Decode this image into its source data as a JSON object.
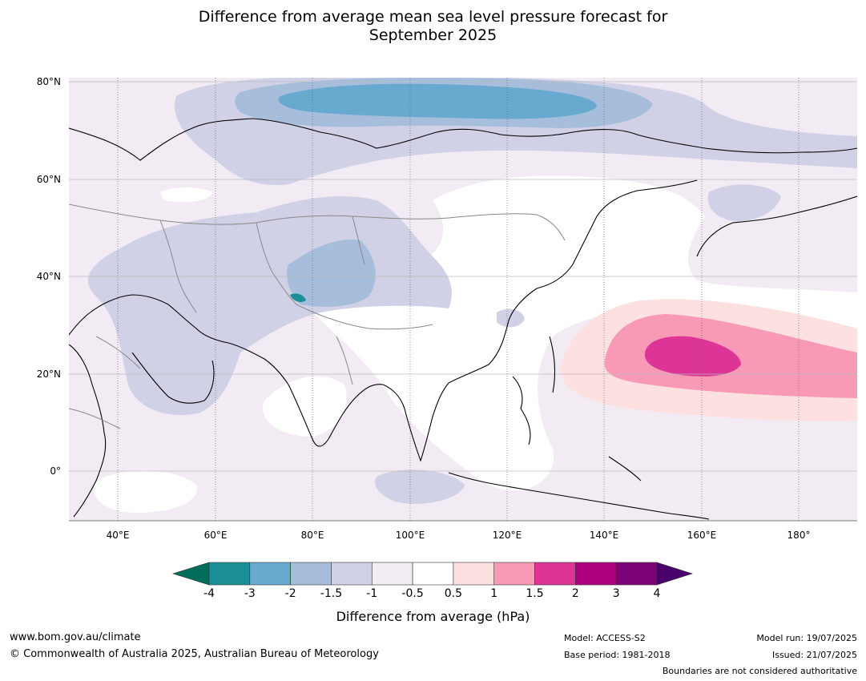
{
  "title_line1": "Difference from average mean sea level pressure forecast for",
  "title_line2": "September 2025",
  "lat_labels": [
    "80°N",
    "60°N",
    "40°N",
    "20°N",
    "0°"
  ],
  "lon_labels": [
    "40°E",
    "60°E",
    "80°E",
    "100°E",
    "120°E",
    "140°E",
    "160°E",
    "180°"
  ],
  "colorbar": {
    "ticks": [
      "-4",
      "-3",
      "-2",
      "-1.5",
      "-1",
      "-0.5",
      "0.5",
      "1",
      "1.5",
      "2",
      "3",
      "4"
    ],
    "colors": [
      "#1a9096",
      "#67a9cf",
      "#a6bddb",
      "#d0d1e6",
      "#f2ebf4",
      "#ffffff",
      "#fde0e0",
      "#f89ab5",
      "#dd3497",
      "#ae017e",
      "#7a0177"
    ],
    "low_extend_color": "#016c59",
    "high_extend_color": "#49006a",
    "label": "Difference from average (hPa)"
  },
  "footer": {
    "website": "www.bom.gov.au/climate",
    "copyright": "© Commonwealth of Australia 2025, Australian Bureau of Meteorology",
    "model": "Model: ACCESS-S2",
    "base_period": "Base period: 1981-2018",
    "model_run": "Model run: 19/07/2025",
    "issued": "Issued: 21/07/2025",
    "disclaimer": "Boundaries are not considered authoritative"
  }
}
